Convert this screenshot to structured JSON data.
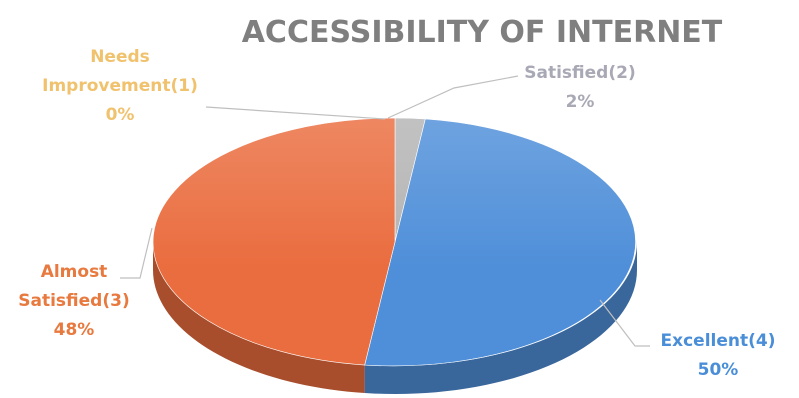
{
  "chart_data": {
    "type": "pie",
    "title": "ACCESSIBILITY OF INTERNET",
    "three_d": true,
    "legend": "none",
    "slices": [
      {
        "name": "Needs Improvement(1)",
        "label_lines": [
          "Needs",
          "Improvement(1)"
        ],
        "value": 0,
        "percent_label": "0%",
        "color": "#f2c36b",
        "label_color": "#f0c26e"
      },
      {
        "name": "Satisfied(2)",
        "label_lines": [
          "Satisfied(2)"
        ],
        "value": 2,
        "percent_label": "2%",
        "color": "#b4b4b4",
        "label_color": "#a9a9b6"
      },
      {
        "name": "Excellent(4)",
        "label_lines": [
          "Excellent(4)"
        ],
        "value": 50,
        "percent_label": "50%",
        "color": "#4f8fd9",
        "label_color": "#4a8ed8"
      },
      {
        "name": "Almost Satisfied(3)",
        "label_lines": [
          "Almost",
          "Satisfied(3)"
        ],
        "value": 48,
        "percent_label": "48%",
        "color": "#ea6d3f",
        "label_color": "#e8793f"
      }
    ]
  }
}
